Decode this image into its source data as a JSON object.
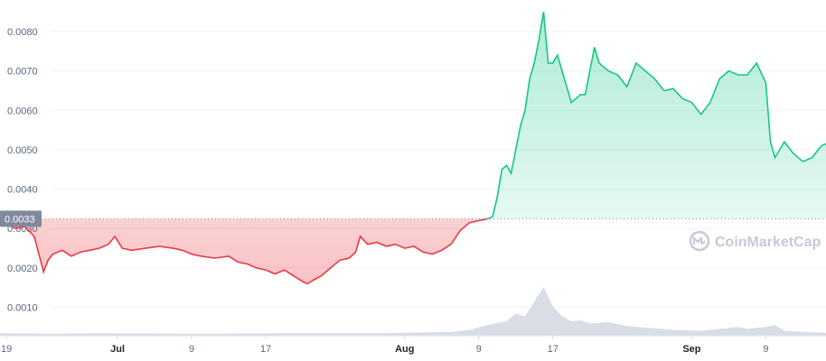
{
  "chart_data": {
    "type": "area",
    "y_axis": {
      "ticks": [
        "0.0010",
        "0.0020",
        "0.0030",
        "0.0040",
        "0.0050",
        "0.0060",
        "0.0070",
        "0.0080"
      ],
      "tick_values": [
        0.001,
        0.002,
        0.003,
        0.004,
        0.005,
        0.006,
        0.007,
        0.008
      ],
      "ylim": [
        0.00028,
        0.0088
      ]
    },
    "x_axis": {
      "ticks": [
        {
          "label": "19",
          "day": 0,
          "bold": false
        },
        {
          "label": "Jul",
          "day": 12,
          "bold": true
        },
        {
          "label": "9",
          "day": 20,
          "bold": false
        },
        {
          "label": "17",
          "day": 28,
          "bold": false
        },
        {
          "label": "Aug",
          "day": 43,
          "bold": true
        },
        {
          "label": "9",
          "day": 51,
          "bold": false
        },
        {
          "label": "17",
          "day": 59,
          "bold": false
        },
        {
          "label": "Sep",
          "day": 74,
          "bold": true
        },
        {
          "label": "9",
          "day": 82,
          "bold": false
        }
      ],
      "xlim": [
        -0.7,
        88.5
      ]
    },
    "reference_line": {
      "value": 0.00325,
      "label": "0.0033"
    },
    "colors": {
      "below": "#ea3943",
      "above": "#16c784",
      "volume": "#d8dde6",
      "reference": "#808a9d",
      "label_bg": "#808a9d"
    },
    "price_series": [
      [
        -0.7,
        0.0034
      ],
      [
        0,
        0.0031
      ],
      [
        1,
        0.003
      ],
      [
        2,
        0.00305
      ],
      [
        3,
        0.0028
      ],
      [
        4,
        0.0019
      ],
      [
        4.5,
        0.0022
      ],
      [
        5,
        0.00235
      ],
      [
        6,
        0.00245
      ],
      [
        7,
        0.0023
      ],
      [
        8,
        0.0024
      ],
      [
        9,
        0.00245
      ],
      [
        10,
        0.0025
      ],
      [
        11,
        0.0026
      ],
      [
        11.7,
        0.0028
      ],
      [
        12.5,
        0.0025
      ],
      [
        13.5,
        0.00245
      ],
      [
        15,
        0.0025
      ],
      [
        16.5,
        0.00255
      ],
      [
        18,
        0.0025
      ],
      [
        19,
        0.00245
      ],
      [
        20,
        0.00235
      ],
      [
        21,
        0.0023
      ],
      [
        22.5,
        0.00225
      ],
      [
        24,
        0.0023
      ],
      [
        25,
        0.00215
      ],
      [
        26,
        0.0021
      ],
      [
        27,
        0.002
      ],
      [
        28,
        0.00195
      ],
      [
        29,
        0.00185
      ],
      [
        30,
        0.00195
      ],
      [
        31,
        0.0018
      ],
      [
        32,
        0.00165
      ],
      [
        32.5,
        0.0016
      ],
      [
        33.2,
        0.0017
      ],
      [
        34,
        0.0018
      ],
      [
        35,
        0.002
      ],
      [
        36,
        0.0022
      ],
      [
        37,
        0.00225
      ],
      [
        37.7,
        0.0024
      ],
      [
        38.2,
        0.0028
      ],
      [
        39,
        0.0026
      ],
      [
        40,
        0.00265
      ],
      [
        41,
        0.00255
      ],
      [
        42,
        0.0026
      ],
      [
        43,
        0.0025
      ],
      [
        44,
        0.00255
      ],
      [
        45,
        0.0024
      ],
      [
        46,
        0.00235
      ],
      [
        47,
        0.00245
      ],
      [
        48,
        0.0026
      ],
      [
        49,
        0.00295
      ],
      [
        50,
        0.00315
      ],
      [
        51,
        0.0032
      ],
      [
        52,
        0.00325
      ],
      [
        52.5,
        0.0033
      ],
      [
        53,
        0.0038
      ],
      [
        53.5,
        0.0045
      ],
      [
        54,
        0.0046
      ],
      [
        54.5,
        0.0044
      ],
      [
        55,
        0.005
      ],
      [
        55.5,
        0.0056
      ],
      [
        56,
        0.006
      ],
      [
        56.5,
        0.0068
      ],
      [
        57,
        0.0072
      ],
      [
        57.5,
        0.0078
      ],
      [
        58,
        0.0085
      ],
      [
        58.5,
        0.0072
      ],
      [
        59,
        0.0072
      ],
      [
        59.5,
        0.0074
      ],
      [
        60,
        0.007
      ],
      [
        61,
        0.0062
      ],
      [
        62,
        0.0064
      ],
      [
        62.5,
        0.0064
      ],
      [
        63,
        0.007
      ],
      [
        63.5,
        0.0076
      ],
      [
        64,
        0.0072
      ],
      [
        65,
        0.007
      ],
      [
        66,
        0.0069
      ],
      [
        67,
        0.0066
      ],
      [
        68,
        0.0072
      ],
      [
        69,
        0.007
      ],
      [
        70,
        0.0068
      ],
      [
        71,
        0.0065
      ],
      [
        72,
        0.00655
      ],
      [
        73,
        0.0063
      ],
      [
        74,
        0.0062
      ],
      [
        75,
        0.0059
      ],
      [
        76,
        0.0062
      ],
      [
        77,
        0.0068
      ],
      [
        78,
        0.007
      ],
      [
        79,
        0.0069
      ],
      [
        80,
        0.0069
      ],
      [
        81,
        0.0072
      ],
      [
        82,
        0.0067
      ],
      [
        82.5,
        0.0052
      ],
      [
        83,
        0.0048
      ],
      [
        84,
        0.0052
      ],
      [
        85,
        0.0049
      ],
      [
        86,
        0.0047
      ],
      [
        87,
        0.0048
      ],
      [
        88,
        0.0051
      ],
      [
        88.5,
        0.00515
      ]
    ],
    "volume_series": [
      [
        -0.7,
        0.05
      ],
      [
        5,
        0.04
      ],
      [
        10,
        0.05
      ],
      [
        20,
        0.04
      ],
      [
        30,
        0.05
      ],
      [
        40,
        0.05
      ],
      [
        48,
        0.08
      ],
      [
        50,
        0.12
      ],
      [
        52,
        0.22
      ],
      [
        54,
        0.3
      ],
      [
        55,
        0.45
      ],
      [
        56,
        0.4
      ],
      [
        57,
        0.7
      ],
      [
        58,
        1.0
      ],
      [
        59,
        0.6
      ],
      [
        60,
        0.4
      ],
      [
        61,
        0.3
      ],
      [
        62,
        0.32
      ],
      [
        63,
        0.25
      ],
      [
        65,
        0.28
      ],
      [
        67,
        0.2
      ],
      [
        70,
        0.15
      ],
      [
        72,
        0.12
      ],
      [
        75,
        0.1
      ],
      [
        77,
        0.14
      ],
      [
        79,
        0.18
      ],
      [
        80,
        0.14
      ],
      [
        82,
        0.18
      ],
      [
        83,
        0.22
      ],
      [
        84,
        0.1
      ],
      [
        86,
        0.08
      ],
      [
        88.5,
        0.06
      ]
    ],
    "grid": true,
    "watermark": "CoinMarketCap"
  }
}
